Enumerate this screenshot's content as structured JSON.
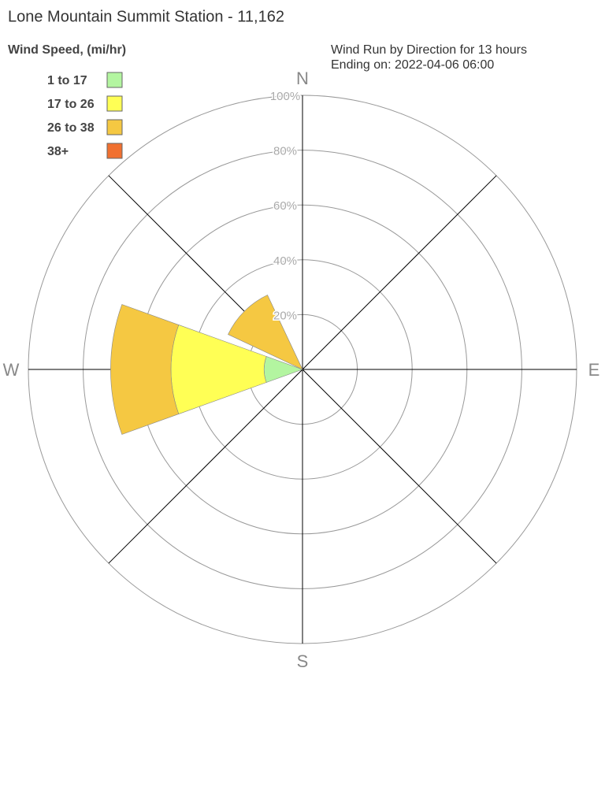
{
  "chart_data": {
    "type": "rose",
    "title": "Lone Mountain Summit Station - 11,162",
    "legend_title": "Wind Speed, (mi/hr)",
    "subtitle": [
      "Wind Run by Direction for 13 hours",
      "Ending on: 2022-04-06 06:00"
    ],
    "categories": [
      "N",
      null,
      "E",
      null,
      "S",
      null,
      "W",
      null
    ],
    "series": [
      {
        "name": "1 to 17",
        "color": "#b3f5a0",
        "values": [
          0,
          0,
          0,
          0,
          0,
          0,
          14,
          0
        ]
      },
      {
        "name": "17 to 26",
        "color": "#ffff55",
        "values": [
          0,
          0,
          0,
          0,
          0,
          0,
          34,
          0
        ]
      },
      {
        "name": "26 to 38",
        "color": "#f5c842",
        "values": [
          0,
          0,
          0,
          0,
          0,
          0,
          22,
          30
        ]
      },
      {
        "name": "38+",
        "color": "#f07030",
        "values": [
          0,
          0,
          0,
          0,
          0,
          0,
          0,
          0
        ]
      }
    ],
    "rlim": [
      0,
      100
    ],
    "rticks": [
      {
        "value": 20,
        "label": "20%"
      },
      {
        "value": 40,
        "label": "40%"
      },
      {
        "value": 60,
        "label": "60%"
      },
      {
        "value": 80,
        "label": "80%"
      },
      {
        "value": 100,
        "label": "100%"
      }
    ],
    "legend": "upper left"
  }
}
